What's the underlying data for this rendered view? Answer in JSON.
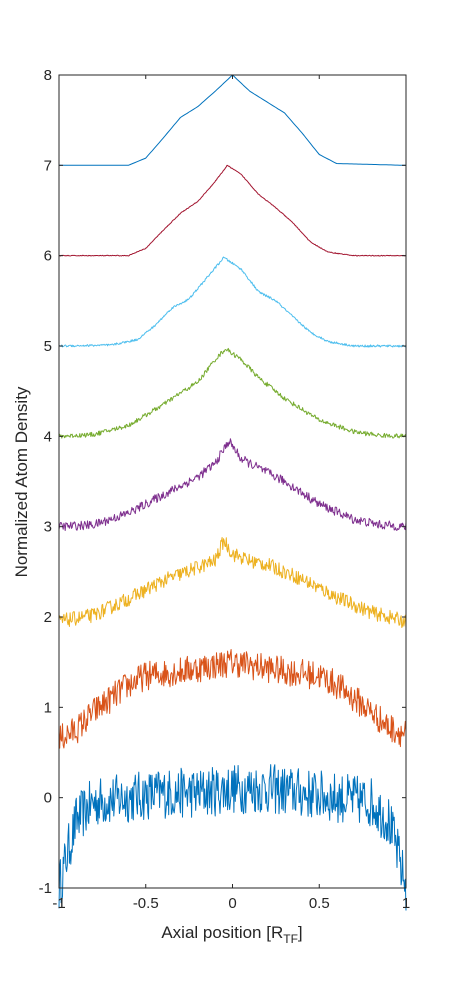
{
  "chart_data": {
    "type": "line",
    "title": "",
    "xlabel": "Axial position [R",
    "xlabel_sub": "TF",
    "xlabel_end": "]",
    "ylabel": "Normalized Atom Density",
    "xlim": [
      -1,
      1
    ],
    "ylim": [
      -1,
      8
    ],
    "xticks": [
      "-1",
      "-0.5",
      "0",
      "0.5",
      "1"
    ],
    "xtick_values": [
      -1,
      -0.5,
      0,
      0.5,
      1
    ],
    "yticks": [
      "-1",
      "0",
      "1",
      "2",
      "3",
      "4",
      "5",
      "6",
      "7",
      "8"
    ],
    "ytick_values": [
      -1,
      0,
      1,
      2,
      3,
      4,
      5,
      6,
      7,
      8
    ],
    "grid": false,
    "legend": "none",
    "series": [
      {
        "color": "#0072BD",
        "offset": 0,
        "noise": 0.28,
        "x": [
          -1,
          -0.95,
          -0.9,
          -0.8,
          -0.6,
          -0.4,
          -0.2,
          0,
          0.2,
          0.4,
          0.6,
          0.8,
          0.9,
          0.95,
          1
        ],
        "y": [
          -1.0,
          -0.6,
          -0.25,
          -0.05,
          0.0,
          0.05,
          0.05,
          0.1,
          0.1,
          0.05,
          0.0,
          -0.05,
          -0.25,
          -0.6,
          -1.0
        ]
      },
      {
        "color": "#D95319",
        "offset": 1,
        "noise": 0.16,
        "x": [
          -1,
          -0.9,
          -0.8,
          -0.7,
          -0.6,
          -0.5,
          -0.3,
          0,
          0.3,
          0.5,
          0.6,
          0.7,
          0.8,
          0.9,
          1
        ],
        "y": [
          0.65,
          0.75,
          0.95,
          1.1,
          1.25,
          1.35,
          1.4,
          1.5,
          1.4,
          1.35,
          1.25,
          1.1,
          0.95,
          0.78,
          0.7
        ]
      },
      {
        "color": "#EDB120",
        "offset": 2,
        "noise": 0.08,
        "x": [
          -1,
          -0.8,
          -0.6,
          -0.4,
          -0.2,
          -0.1,
          -0.05,
          0,
          0.1,
          0.2,
          0.4,
          0.6,
          0.8,
          1
        ],
        "y": [
          1.95,
          2.02,
          2.2,
          2.4,
          2.55,
          2.62,
          2.85,
          2.7,
          2.62,
          2.58,
          2.42,
          2.22,
          2.05,
          1.95
        ]
      },
      {
        "color": "#7E2F8E",
        "offset": 3,
        "noise": 0.05,
        "x": [
          -1,
          -0.8,
          -0.6,
          -0.4,
          -0.2,
          -0.1,
          -0.02,
          0.05,
          0.15,
          0.3,
          0.5,
          0.7,
          0.85,
          1
        ],
        "y": [
          3.0,
          3.02,
          3.15,
          3.35,
          3.55,
          3.7,
          3.95,
          3.75,
          3.65,
          3.5,
          3.25,
          3.08,
          3.02,
          3.0
        ]
      },
      {
        "color": "#77AC30",
        "offset": 4,
        "noise": 0.025,
        "x": [
          -1,
          -0.8,
          -0.6,
          -0.4,
          -0.3,
          -0.2,
          -0.1,
          -0.04,
          0.05,
          0.15,
          0.3,
          0.5,
          0.7,
          0.85,
          1
        ],
        "y": [
          4.0,
          4.02,
          4.12,
          4.35,
          4.48,
          4.6,
          4.85,
          4.97,
          4.85,
          4.65,
          4.42,
          4.18,
          4.05,
          4.01,
          4.0
        ]
      },
      {
        "color": "#4DBEEE",
        "offset": 5,
        "noise": 0.012,
        "x": [
          -1,
          -0.7,
          -0.55,
          -0.45,
          -0.35,
          -0.25,
          -0.15,
          -0.05,
          0.05,
          0.15,
          0.25,
          0.35,
          0.45,
          0.55,
          0.7,
          1
        ],
        "y": [
          5.0,
          5.01,
          5.07,
          5.22,
          5.42,
          5.52,
          5.75,
          5.98,
          5.85,
          5.6,
          5.5,
          5.32,
          5.15,
          5.05,
          5.0,
          5.0
        ]
      },
      {
        "color": "#A2142F",
        "offset": 6,
        "noise": 0.004,
        "x": [
          -1,
          -0.6,
          -0.5,
          -0.4,
          -0.3,
          -0.2,
          -0.1,
          -0.03,
          0.05,
          0.15,
          0.25,
          0.35,
          0.45,
          0.55,
          0.7,
          1
        ],
        "y": [
          6.0,
          6.0,
          6.08,
          6.28,
          6.47,
          6.6,
          6.82,
          7.0,
          6.9,
          6.68,
          6.53,
          6.36,
          6.15,
          6.04,
          6.0,
          6.0
        ]
      },
      {
        "color": "#0072BD",
        "offset": 7,
        "noise": 0.0,
        "x": [
          -1,
          -0.6,
          -0.5,
          -0.4,
          -0.3,
          -0.2,
          -0.1,
          0,
          0.1,
          0.2,
          0.3,
          0.4,
          0.5,
          0.6,
          1
        ],
        "y": [
          7.0,
          7.0,
          7.08,
          7.3,
          7.53,
          7.65,
          7.82,
          8.0,
          7.82,
          7.7,
          7.58,
          7.36,
          7.12,
          7.02,
          7.0
        ]
      }
    ]
  }
}
